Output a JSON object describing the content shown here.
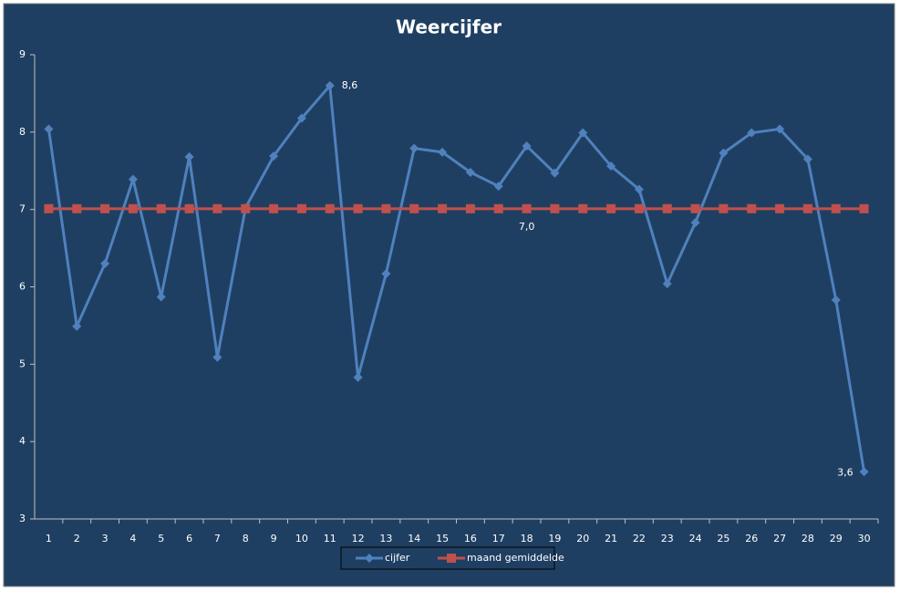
{
  "chart_data": {
    "type": "line",
    "title": "Weercijfer",
    "categories": [
      "1",
      "2",
      "3",
      "4",
      "5",
      "6",
      "7",
      "8",
      "9",
      "10",
      "11",
      "12",
      "13",
      "14",
      "15",
      "16",
      "17",
      "18",
      "19",
      "20",
      "21",
      "22",
      "23",
      "24",
      "25",
      "26",
      "27",
      "28",
      "29",
      "30"
    ],
    "series": [
      {
        "name": "cijfer",
        "color": "#4f81bd",
        "marker": "diamond",
        "values": [
          8.04,
          5.49,
          6.3,
          7.39,
          5.87,
          7.68,
          5.09,
          7.02,
          7.69,
          8.18,
          8.6,
          4.83,
          6.17,
          7.79,
          7.74,
          7.48,
          7.3,
          7.82,
          7.47,
          7.99,
          7.56,
          7.26,
          6.04,
          6.83,
          7.73,
          7.99,
          8.04,
          7.65,
          5.83,
          3.61
        ],
        "value_labels": [
          null,
          null,
          null,
          null,
          null,
          null,
          null,
          null,
          null,
          null,
          "8,6",
          null,
          null,
          null,
          null,
          null,
          null,
          null,
          null,
          null,
          null,
          null,
          null,
          null,
          null,
          null,
          null,
          null,
          null,
          "3,6"
        ]
      },
      {
        "name": "maand gemiddelde",
        "color": "#c0504d",
        "marker": "square",
        "values": [
          7.01,
          7.01,
          7.01,
          7.01,
          7.01,
          7.01,
          7.01,
          7.01,
          7.01,
          7.01,
          7.01,
          7.01,
          7.01,
          7.01,
          7.01,
          7.01,
          7.01,
          7.01,
          7.01,
          7.01,
          7.01,
          7.01,
          7.01,
          7.01,
          7.01,
          7.01,
          7.01,
          7.01,
          7.01,
          7.01
        ],
        "value_labels": [
          null,
          null,
          null,
          null,
          null,
          null,
          null,
          null,
          null,
          null,
          null,
          null,
          null,
          null,
          null,
          null,
          null,
          "7,0",
          null,
          null,
          null,
          null,
          null,
          null,
          null,
          null,
          null,
          null,
          null,
          null
        ]
      }
    ],
    "ylim": [
      3,
      9
    ],
    "yticks": [
      3,
      4,
      5,
      6,
      7,
      8,
      9
    ],
    "grid": false,
    "legend": "bottom"
  }
}
